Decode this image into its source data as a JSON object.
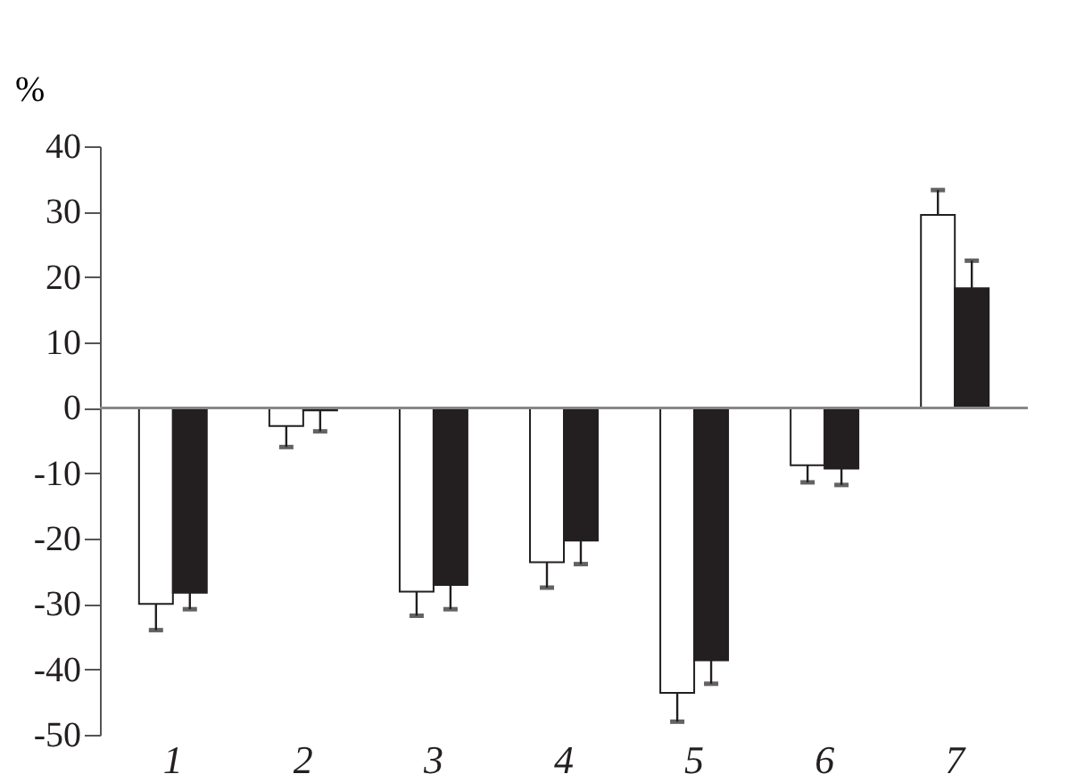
{
  "chart_data": {
    "type": "bar",
    "ylabel": "%",
    "categories": [
      "1",
      "2",
      "3",
      "4",
      "5",
      "6",
      "7"
    ],
    "series": [
      {
        "color": "#ffffff",
        "values": [
          -30.0,
          -2.8,
          -28.1,
          -23.6,
          -43.6,
          -8.8,
          29.5
        ],
        "errors": [
          [
            -34.0,
            -30.0
          ],
          [
            -6.0,
            -2.8
          ],
          [
            -31.8,
            -28.1
          ],
          [
            -27.5,
            -23.6
          ],
          [
            -48.0,
            -43.6
          ],
          [
            -11.4,
            -8.8
          ],
          [
            29.5,
            33.3
          ]
        ]
      },
      {
        "color": "#231f20",
        "values": [
          -28.3,
          -0.4,
          -27.1,
          -20.3,
          -38.6,
          -9.3,
          18.3
        ],
        "errors": [
          [
            -30.8,
            -28.3
          ],
          [
            -3.6,
            -0.4
          ],
          [
            -30.8,
            -27.1
          ],
          [
            -23.9,
            -20.3
          ],
          [
            -42.2,
            -38.6
          ],
          [
            -11.8,
            -9.3
          ],
          [
            18.3,
            22.5
          ]
        ]
      }
    ],
    "ylim": [
      -50,
      40
    ],
    "yticks": [
      -50,
      -40,
      -30,
      -20,
      -10,
      0,
      10,
      20,
      30,
      40
    ],
    "ref_lines": [
      {
        "axis": "y",
        "value": 0,
        "color": "#888888"
      }
    ],
    "grid": false,
    "legend": false
  }
}
